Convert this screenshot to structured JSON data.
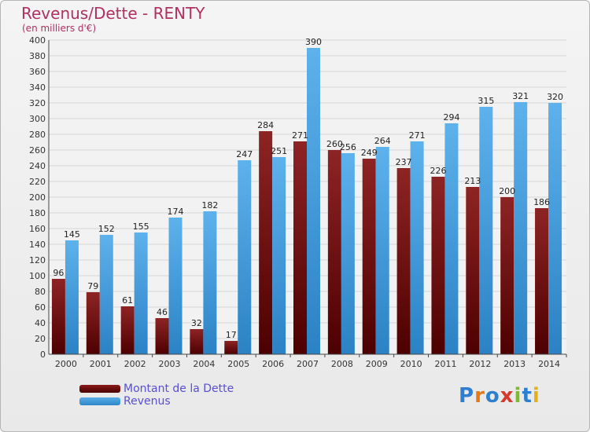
{
  "header": {
    "title": "Revenus/Dette - RENTY",
    "subtitle": "(en milliers d'€)"
  },
  "legend": {
    "items": [
      {
        "label": "Montant de la Dette",
        "color": "#6b0f0f"
      },
      {
        "label": "Revenus",
        "color": "#3a9ae0"
      }
    ]
  },
  "logo": {
    "text": "Proxiti"
  },
  "colors": {
    "dette": "#6b0f0f",
    "revenus": "#3a9ae0",
    "title": "#b03060",
    "legend": "#5a4fd0"
  },
  "chart_data": {
    "type": "bar",
    "title": "Revenus/Dette - RENTY",
    "subtitle": "(en milliers d'€)",
    "categories": [
      "2000",
      "2001",
      "2002",
      "2003",
      "2004",
      "2005",
      "2006",
      "2007",
      "2008",
      "2009",
      "2010",
      "2011",
      "2012",
      "2013",
      "2014"
    ],
    "series": [
      {
        "name": "Montant de la Dette",
        "values": [
          96,
          79,
          61,
          46,
          32,
          17,
          284,
          271,
          260,
          249,
          237,
          226,
          213,
          200,
          186
        ]
      },
      {
        "name": "Revenus",
        "values": [
          145,
          152,
          155,
          174,
          182,
          247,
          251,
          390,
          256,
          264,
          271,
          294,
          315,
          321,
          320
        ]
      }
    ],
    "ylim": [
      0,
      400
    ],
    "yticks": [
      0,
      20,
      40,
      60,
      80,
      100,
      120,
      140,
      160,
      180,
      200,
      220,
      240,
      260,
      280,
      300,
      320,
      340,
      360,
      380,
      400
    ],
    "grid": true,
    "legend_position": "bottom-left"
  }
}
